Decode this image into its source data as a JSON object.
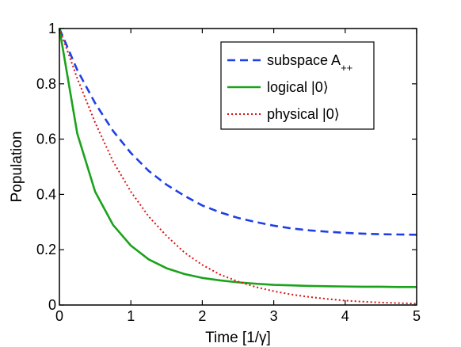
{
  "chart_data": {
    "type": "line",
    "title": "",
    "xlabel": "Time [1/γ]",
    "ylabel": "Population",
    "xlim": [
      0,
      5
    ],
    "ylim": [
      0,
      1
    ],
    "xticks": [
      0,
      1,
      2,
      3,
      4,
      5
    ],
    "yticks": [
      0,
      0.2,
      0.4,
      0.6,
      0.8,
      1
    ],
    "xtick_labels": [
      "0",
      "1",
      "2",
      "3",
      "4",
      "5"
    ],
    "ytick_labels": [
      "0",
      "0.2",
      "0.4",
      "0.6",
      "0.8",
      "1"
    ],
    "grid": false,
    "legend_position": "top-right",
    "x": [
      0,
      0.25,
      0.5,
      0.75,
      1,
      1.25,
      1.5,
      1.75,
      2,
      2.25,
      2.5,
      2.75,
      3,
      3.25,
      3.5,
      3.75,
      4,
      4.25,
      4.5,
      4.75,
      5
    ],
    "series": [
      {
        "name": "subspace A",
        "name_subscript": "++",
        "color": "#1f3fe6",
        "style": "dashed",
        "values": [
          1.0,
          0.85,
          0.73,
          0.63,
          0.55,
          0.485,
          0.435,
          0.395,
          0.36,
          0.335,
          0.315,
          0.3,
          0.287,
          0.277,
          0.27,
          0.265,
          0.261,
          0.258,
          0.256,
          0.255,
          0.254
        ]
      },
      {
        "name": "logical |0⟩",
        "color": "#1aa31a",
        "style": "solid",
        "values": [
          1.0,
          0.62,
          0.41,
          0.29,
          0.215,
          0.165,
          0.133,
          0.112,
          0.098,
          0.089,
          0.082,
          0.077,
          0.073,
          0.071,
          0.069,
          0.068,
          0.067,
          0.066,
          0.066,
          0.065,
          0.065
        ]
      },
      {
        "name": "physical |0⟩",
        "color": "#e01010",
        "style": "dotted",
        "values": [
          1.0,
          0.82,
          0.66,
          0.52,
          0.41,
          0.32,
          0.25,
          0.19,
          0.145,
          0.11,
          0.085,
          0.065,
          0.05,
          0.038,
          0.029,
          0.022,
          0.016,
          0.012,
          0.009,
          0.007,
          0.005
        ]
      }
    ]
  }
}
